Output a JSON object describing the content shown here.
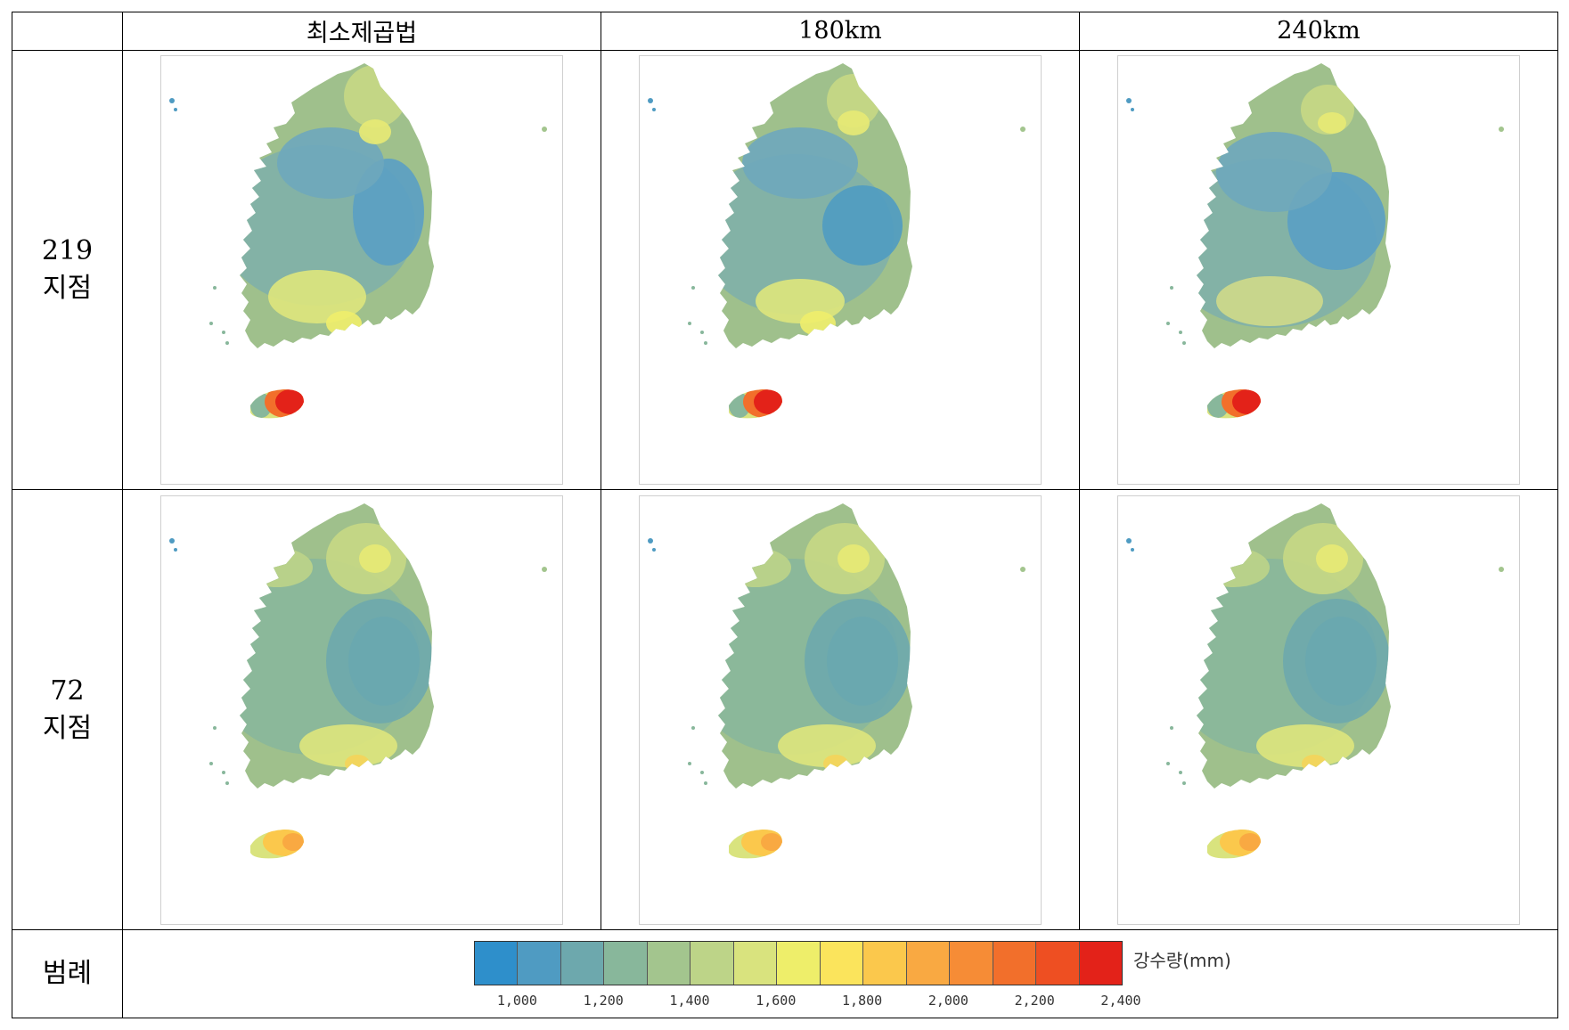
{
  "columns": [
    "최소제곱법",
    "180km",
    "240km"
  ],
  "rows": [
    {
      "label_num": "219",
      "label_txt": "지점"
    },
    {
      "label_num": "72",
      "label_txt": "지점"
    }
  ],
  "legend": {
    "row_label": "범례",
    "title": "강수량(mm)",
    "colors": [
      "#2e8fcb",
      "#4f9bc2",
      "#6da8ad",
      "#88b79b",
      "#a3c58e",
      "#bdd488",
      "#d9e37e",
      "#eeee6a",
      "#fbe45c",
      "#fbc84c",
      "#f9a942",
      "#f68c36",
      "#f26f2b",
      "#ee4f22",
      "#e32219"
    ],
    "ticks": [
      "1,000",
      "1,200",
      "1,400",
      "1,600",
      "1,800",
      "2,000",
      "2,200",
      "2,400"
    ]
  }
}
